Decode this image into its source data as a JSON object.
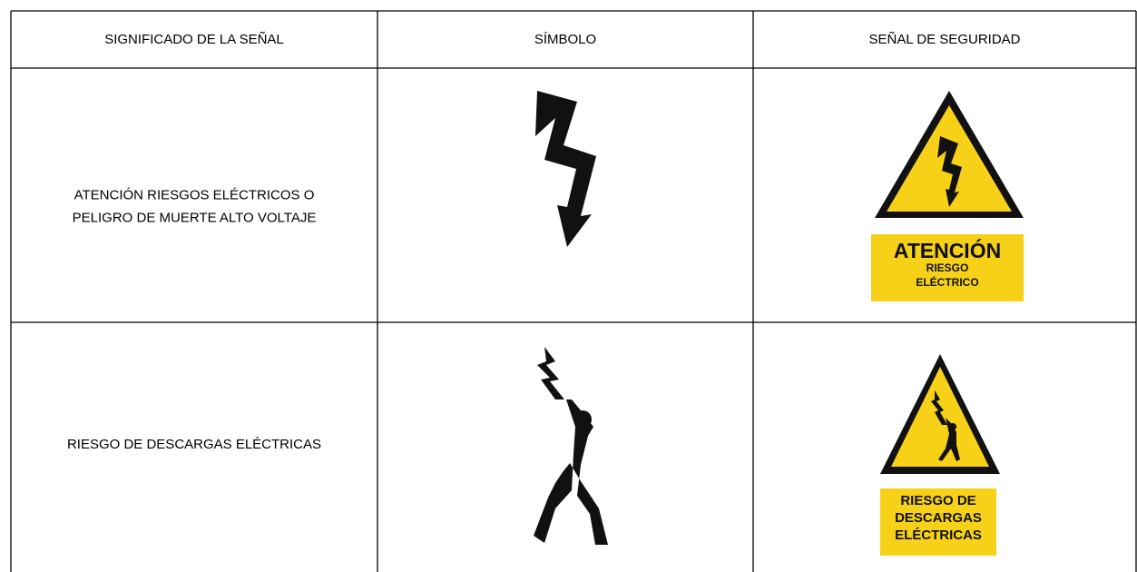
{
  "table": {
    "header": [
      "SIGNIFICADO DE LA SEÑAL",
      "SÍMBOLO",
      "SEÑAL DE SEGURIDAD"
    ],
    "rows": [
      {
        "meaning": [
          "ATENCIÓN RIESGOS ELÉCTRICOS O",
          "PELIGRO DE MUERTE ALTO VOLTAJE"
        ],
        "sign": {
          "title": "ATENCIÓN",
          "lines": [
            "RIESGO",
            "ELÉCTRICO"
          ]
        }
      },
      {
        "meaning": [
          "RIESGO DE DESCARGAS ELÉCTRICAS"
        ],
        "sign": {
          "lines": [
            "RIESGO DE",
            "DESCARGAS",
            "ELÉCTRICAS"
          ]
        }
      }
    ]
  }
}
